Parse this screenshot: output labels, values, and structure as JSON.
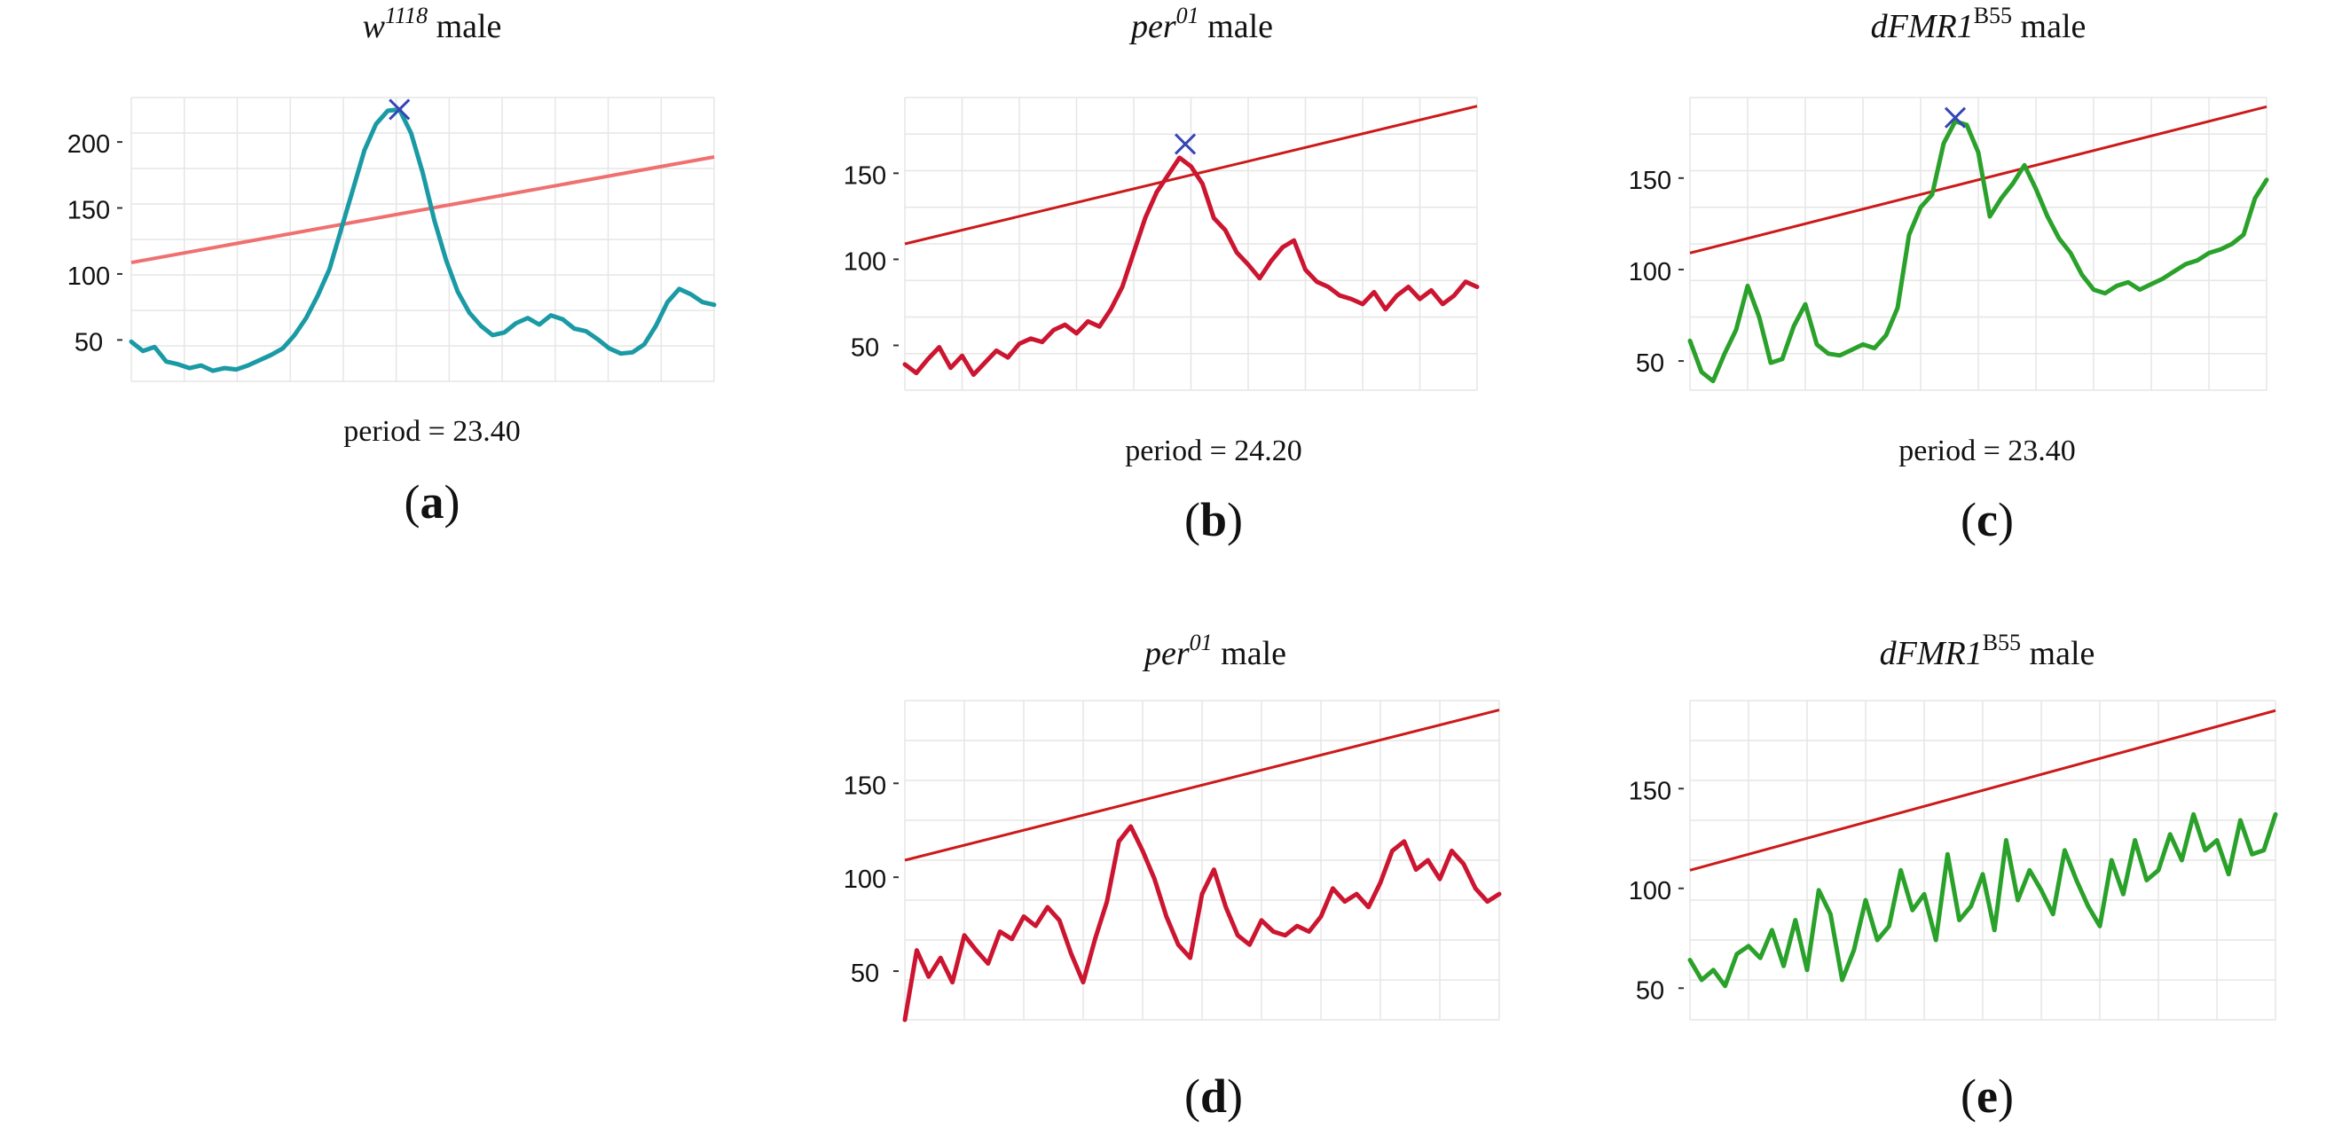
{
  "chart_data": [
    {
      "id": "a",
      "type": "line",
      "panel_label": "a",
      "title_gene": "w",
      "title_sup": "1118",
      "title_suffix": " male",
      "period_text": "period = 23.40",
      "y_ticks": [
        50,
        100,
        150,
        200
      ],
      "ylim": [
        20,
        235
      ],
      "xlim": [
        0,
        100
      ],
      "colors": {
        "series": "#1a9aa5",
        "threshold": "#f07070",
        "peak_marker": "#3545b5"
      },
      "threshold": {
        "x": [
          0,
          100
        ],
        "y": [
          110,
          190
        ]
      },
      "peak": {
        "x": 46,
        "y": 226
      },
      "series": [
        {
          "x": [
            0,
            2,
            4,
            6,
            8,
            10,
            12,
            14,
            16,
            18,
            20,
            22,
            24,
            26,
            28,
            30,
            32,
            34,
            36,
            38,
            40,
            42,
            44,
            46,
            48,
            50,
            52,
            54,
            56,
            58,
            60,
            62,
            64,
            66,
            68,
            70,
            72,
            74,
            76,
            78,
            80,
            82,
            84,
            86,
            88,
            90,
            92,
            94,
            96,
            98,
            100
          ],
          "values": [
            50,
            43,
            46,
            35,
            33,
            30,
            32,
            28,
            30,
            29,
            32,
            36,
            40,
            45,
            55,
            68,
            85,
            105,
            135,
            165,
            195,
            215,
            225,
            226,
            208,
            178,
            142,
            112,
            88,
            72,
            62,
            55,
            57,
            64,
            68,
            63,
            70,
            67,
            60,
            58,
            52,
            45,
            41,
            42,
            48,
            62,
            80,
            90,
            86,
            80,
            78
          ]
        }
      ]
    },
    {
      "id": "b",
      "type": "line",
      "panel_label": "b",
      "title_gene": "per",
      "title_sup": "01",
      "title_suffix": " male",
      "period_text": "period = 24.20",
      "y_ticks": [
        50,
        100,
        150
      ],
      "ylim": [
        25,
        195
      ],
      "xlim": [
        0,
        100
      ],
      "colors": {
        "series": "#cc1530",
        "threshold": "#cc1a1a",
        "peak_marker": "#3545b5"
      },
      "threshold": {
        "x": [
          0,
          100
        ],
        "y": [
          110,
          190
        ]
      },
      "peak": {
        "x": 49,
        "y": 168
      },
      "series": [
        {
          "x": [
            0,
            2,
            4,
            6,
            8,
            10,
            12,
            14,
            16,
            18,
            20,
            22,
            24,
            26,
            28,
            30,
            32,
            34,
            36,
            38,
            40,
            42,
            44,
            46,
            48,
            50,
            52,
            54,
            56,
            58,
            60,
            62,
            64,
            66,
            68,
            70,
            72,
            74,
            76,
            78,
            80,
            82,
            84,
            86,
            88,
            90,
            92,
            94,
            96,
            98,
            100
          ],
          "values": [
            40,
            35,
            43,
            50,
            38,
            45,
            34,
            41,
            48,
            44,
            52,
            55,
            53,
            60,
            63,
            58,
            65,
            62,
            72,
            85,
            105,
            125,
            140,
            150,
            160,
            155,
            145,
            125,
            118,
            105,
            98,
            90,
            100,
            108,
            112,
            95,
            88,
            85,
            80,
            78,
            75,
            82,
            72,
            80,
            85,
            78,
            83,
            75,
            80,
            88,
            85
          ]
        }
      ]
    },
    {
      "id": "c",
      "type": "line",
      "panel_label": "c",
      "title_gene": "dFMR1",
      "title_sup": "B55",
      "title_suffix": " male",
      "period_text": "period = 23.40",
      "y_ticks": [
        50,
        100,
        150
      ],
      "ylim": [
        35,
        195
      ],
      "xlim": [
        0,
        100
      ],
      "colors": {
        "series": "#2aa12a",
        "threshold": "#cc1a1a",
        "peak_marker": "#3545b5"
      },
      "threshold": {
        "x": [
          0,
          100
        ],
        "y": [
          110,
          190
        ]
      },
      "peak": {
        "x": 46,
        "y": 184
      },
      "series": [
        {
          "x": [
            0,
            2,
            4,
            6,
            8,
            10,
            12,
            14,
            16,
            18,
            20,
            22,
            24,
            26,
            28,
            30,
            32,
            34,
            36,
            38,
            40,
            42,
            44,
            46,
            48,
            50,
            52,
            54,
            56,
            58,
            60,
            62,
            64,
            66,
            68,
            70,
            72,
            74,
            76,
            78,
            80,
            82,
            84,
            86,
            88,
            90,
            92,
            94,
            96,
            98,
            100
          ],
          "values": [
            62,
            45,
            40,
            55,
            68,
            92,
            75,
            50,
            52,
            70,
            82,
            60,
            55,
            54,
            57,
            60,
            58,
            65,
            80,
            120,
            135,
            142,
            170,
            182,
            180,
            165,
            130,
            140,
            148,
            158,
            145,
            130,
            118,
            110,
            98,
            90,
            88,
            92,
            94,
            90,
            93,
            96,
            100,
            104,
            106,
            110,
            112,
            115,
            120,
            140,
            150
          ]
        }
      ]
    },
    {
      "id": "d",
      "type": "line",
      "panel_label": "d",
      "title_gene": "per",
      "title_sup": "01",
      "title_suffix": " male",
      "period_text": "",
      "y_ticks": [
        50,
        100,
        150
      ],
      "ylim": [
        25,
        195
      ],
      "xlim": [
        0,
        100
      ],
      "colors": {
        "series": "#cc1530",
        "threshold": "#cc1a1a"
      },
      "threshold": {
        "x": [
          0,
          100
        ],
        "y": [
          110,
          190
        ]
      },
      "series": [
        {
          "x": [
            0,
            2,
            4,
            6,
            8,
            10,
            12,
            14,
            16,
            18,
            20,
            22,
            24,
            26,
            28,
            30,
            32,
            34,
            36,
            38,
            40,
            42,
            44,
            46,
            48,
            50,
            52,
            54,
            56,
            58,
            60,
            62,
            64,
            66,
            68,
            70,
            72,
            74,
            76,
            78,
            80,
            82,
            84,
            86,
            88,
            90,
            92,
            94,
            96,
            98,
            100
          ],
          "values": [
            25,
            62,
            48,
            58,
            45,
            70,
            62,
            55,
            72,
            68,
            80,
            75,
            85,
            78,
            60,
            45,
            68,
            88,
            120,
            128,
            115,
            100,
            80,
            65,
            58,
            92,
            105,
            85,
            70,
            65,
            78,
            72,
            70,
            75,
            72,
            80,
            95,
            88,
            92,
            85,
            98,
            115,
            120,
            105,
            110,
            100,
            115,
            108,
            95,
            88,
            92
          ]
        }
      ]
    },
    {
      "id": "e",
      "type": "line",
      "panel_label": "e",
      "title_gene": "dFMR1",
      "title_sup": "B55",
      "title_suffix": " male",
      "period_text": "",
      "y_ticks": [
        50,
        100,
        150
      ],
      "ylim": [
        35,
        195
      ],
      "xlim": [
        0,
        100
      ],
      "colors": {
        "series": "#2aa12a",
        "threshold": "#cc1a1a"
      },
      "threshold": {
        "x": [
          0,
          100
        ],
        "y": [
          110,
          190
        ]
      },
      "series": [
        {
          "x": [
            0,
            2,
            4,
            6,
            8,
            10,
            12,
            14,
            16,
            18,
            20,
            22,
            24,
            26,
            28,
            30,
            32,
            34,
            36,
            38,
            40,
            42,
            44,
            46,
            48,
            50,
            52,
            54,
            56,
            58,
            60,
            62,
            64,
            66,
            68,
            70,
            72,
            74,
            76,
            78,
            80,
            82,
            84,
            86,
            88,
            90,
            92,
            94,
            96,
            98,
            100
          ],
          "values": [
            65,
            55,
            60,
            52,
            68,
            72,
            66,
            80,
            62,
            85,
            60,
            100,
            88,
            55,
            70,
            95,
            75,
            82,
            110,
            90,
            98,
            75,
            118,
            85,
            92,
            108,
            80,
            125,
            95,
            110,
            100,
            88,
            120,
            105,
            92,
            82,
            115,
            98,
            125,
            105,
            110,
            128,
            115,
            138,
            120,
            125,
            108,
            135,
            118,
            120,
            138
          ]
        }
      ]
    }
  ]
}
